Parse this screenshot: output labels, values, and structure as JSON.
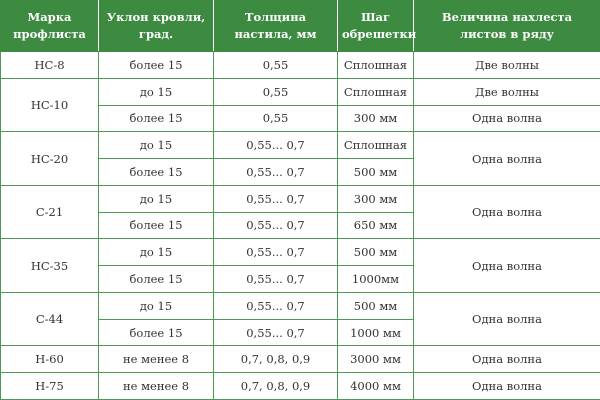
{
  "table": {
    "header": [
      "Марка профлиста",
      "Уклон кровли, град.",
      "Толщина настила, мм",
      "Шаг обрешетки",
      "Величина нахлеста листов в ряду"
    ],
    "groups": [
      {
        "mark": "НС-8",
        "rows": [
          {
            "slope": "более 15",
            "thickness": "0,55",
            "step": "Сплошная",
            "overlap": "Две волны"
          }
        ]
      },
      {
        "mark": "НС-10",
        "rows": [
          {
            "slope": "до 15",
            "thickness": "0,55",
            "step": "Сплошная",
            "overlap": "Две волны"
          },
          {
            "slope": "более 15",
            "thickness": "0,55",
            "step": "300 мм",
            "overlap": "Одна волна"
          }
        ]
      },
      {
        "mark": "НС-20",
        "overlap": "Одна волна",
        "rows": [
          {
            "slope": "до 15",
            "thickness": "0,55... 0,7",
            "step": "Сплошная"
          },
          {
            "slope": "более 15",
            "thickness": "0,55... 0,7",
            "step": "500 мм"
          }
        ]
      },
      {
        "mark": "С-21",
        "overlap": "Одна волна",
        "rows": [
          {
            "slope": "до 15",
            "thickness": "0,55... 0,7",
            "step": "300 мм"
          },
          {
            "slope": "более 15",
            "thickness": "0,55... 0,7",
            "step": "650 мм"
          }
        ]
      },
      {
        "mark": "НС-35",
        "overlap": "Одна волна",
        "rows": [
          {
            "slope": "до 15",
            "thickness": "0,55... 0,7",
            "step": "500 мм"
          },
          {
            "slope": "более 15",
            "thickness": "0,55... 0,7",
            "step": "1000мм"
          }
        ]
      },
      {
        "mark": "С-44",
        "overlap": "Одна волна",
        "rows": [
          {
            "slope": "до 15",
            "thickness": "0,55... 0,7",
            "step": "500 мм"
          },
          {
            "slope": "более 15",
            "thickness": "0,55... 0,7",
            "step": "1000 мм"
          }
        ]
      },
      {
        "mark": "Н-60",
        "rows": [
          {
            "slope": "не менее 8",
            "thickness": "0,7, 0,8, 0,9",
            "step": "3000 мм",
            "overlap": "Одна волна"
          }
        ]
      },
      {
        "mark": "Н-75",
        "rows": [
          {
            "slope": "не менее 8",
            "thickness": "0,7, 0,8, 0,9",
            "step": "4000 мм",
            "overlap": "Одна волна"
          }
        ]
      }
    ]
  }
}
